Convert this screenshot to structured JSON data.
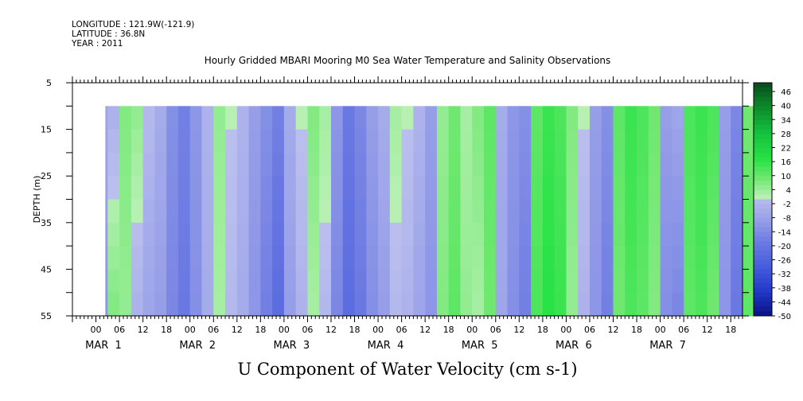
{
  "header": {
    "longitude_label": "LONGITUDE : 121.9W(-121.9)",
    "latitude_label": "LATITUDE : 36.8N",
    "year_label": "YEAR : 2011",
    "plot_title": "Hourly Gridded MBARI Mooring M0 Sea Water Temperature and Salinity Observations",
    "variable_label": "U Component of Water Velocity (cm s-1)"
  },
  "chart_data": {
    "type": "heatmap",
    "title": "Hourly Gridded MBARI Mooring M0 Sea Water Temperature and Salinity Observations",
    "xlabel": "",
    "ylabel": "DEPTH (m)",
    "colorbar_label": "U Component of Water Velocity (cm s-1)",
    "y_ticks": [
      5,
      15,
      25,
      35,
      45,
      55
    ],
    "y_range": [
      5,
      55
    ],
    "y_inverted": true,
    "data_depth_range": [
      10,
      55
    ],
    "x_hour_ticks": [
      "00",
      "06",
      "12",
      "18",
      "00",
      "06",
      "12",
      "18",
      "00",
      "06",
      "12",
      "18",
      "00",
      "06",
      "12",
      "18",
      "00",
      "06",
      "12",
      "18",
      "00",
      "06",
      "12",
      "18",
      "00",
      "06",
      "12",
      "18"
    ],
    "x_day_labels": [
      "MAR  1",
      "MAR  2",
      "MAR  3",
      "MAR  4",
      "MAR  5",
      "MAR  6",
      "MAR  7"
    ],
    "x_range_days": [
      -0.25,
      6.875
    ],
    "data_start_day": 0.1,
    "colorbar_levels": [
      48,
      46,
      44,
      42,
      40,
      38,
      36,
      34,
      32,
      30,
      28,
      26,
      24,
      22,
      20,
      18,
      16,
      14,
      12,
      10,
      8,
      6,
      4,
      2,
      0,
      -2,
      -4,
      -6,
      -8,
      -10,
      -12,
      -14,
      -16,
      -18,
      -20,
      -22,
      -24,
      -26,
      -28,
      -30,
      -32,
      -34,
      -36,
      -38,
      -40,
      -42,
      -44,
      -46,
      -48,
      -50
    ],
    "colorbar_tick_labels": [
      "46",
      "40",
      "34",
      "28",
      "22",
      "16",
      "10",
      "4",
      "-2",
      "-8",
      "-14",
      "-20",
      "-26",
      "-32",
      "-38",
      "-44",
      "-50"
    ],
    "profile": {
      "description": "hourly average U velocity (cm/s), top-to-bottom evolution approximated",
      "hours": [
        3,
        6,
        9,
        12,
        15,
        18,
        21,
        24,
        27,
        30,
        33,
        36,
        39,
        42,
        45,
        48,
        51,
        54,
        57,
        60,
        63,
        66,
        69,
        72,
        75,
        78,
        81,
        84,
        87,
        90,
        93,
        96,
        99,
        102,
        105,
        108,
        111,
        114,
        117,
        120,
        123,
        126,
        129,
        132,
        135,
        138,
        141,
        144,
        147,
        150,
        153,
        156,
        159,
        162,
        165,
        168
      ],
      "u_upper": [
        -8,
        -4,
        6,
        4,
        -2,
        -6,
        -14,
        -18,
        -12,
        -4,
        4,
        0,
        -4,
        -10,
        -14,
        -18,
        -6,
        0,
        6,
        2,
        -12,
        -20,
        -16,
        -10,
        -6,
        2,
        0,
        -4,
        -10,
        4,
        8,
        2,
        6,
        10,
        -6,
        -12,
        -14,
        10,
        14,
        12,
        6,
        0,
        -10,
        -14,
        10,
        14,
        12,
        8,
        -10,
        -8,
        12,
        14,
        12,
        -10,
        -16,
        8
      ],
      "u_lower": [
        -12,
        6,
        4,
        -4,
        -8,
        -10,
        -16,
        -20,
        -14,
        -6,
        2,
        -2,
        -6,
        -12,
        -18,
        -24,
        -10,
        -4,
        2,
        -2,
        -16,
        -24,
        -20,
        -14,
        -10,
        -2,
        -4,
        -8,
        -12,
        6,
        10,
        4,
        2,
        8,
        -8,
        -14,
        -18,
        12,
        16,
        14,
        4,
        -4,
        -12,
        -18,
        8,
        12,
        10,
        6,
        -14,
        -16,
        10,
        12,
        8,
        -12,
        -20,
        10
      ]
    }
  }
}
